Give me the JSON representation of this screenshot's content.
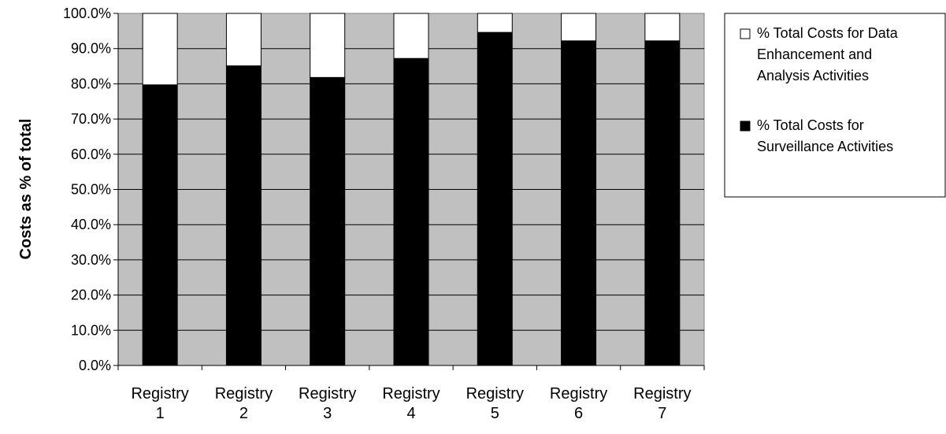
{
  "chart_data": {
    "type": "bar",
    "stacked": true,
    "percent_scale": true,
    "categories": [
      [
        "Registry",
        "1"
      ],
      [
        "Registry",
        "2"
      ],
      [
        "Registry",
        "3"
      ],
      [
        "Registry",
        "4"
      ],
      [
        "Registry",
        "5"
      ],
      [
        "Registry",
        "6"
      ],
      [
        "Registry",
        "7"
      ]
    ],
    "series": [
      {
        "name": "% Total Costs for Surveillance Activities",
        "legend_lines": [
          "% Total Costs for",
          "Surveillance Activities"
        ],
        "color": "#000000",
        "values": [
          79.7,
          85.1,
          81.8,
          87.2,
          94.6,
          92.2,
          92.2
        ]
      },
      {
        "name": "% Total Costs for Data Enhancement and Analysis Activities",
        "legend_lines": [
          "% Total Costs for Data",
          "Enhancement and",
          "Analysis Activities"
        ],
        "color": "#ffffff",
        "values": [
          20.3,
          14.9,
          18.2,
          12.8,
          5.4,
          7.8,
          7.8
        ]
      }
    ],
    "ylabel": "Costs as % of total",
    "xlabel": "",
    "title": "",
    "ylim": [
      0,
      100
    ],
    "yticks": [
      "0.0%",
      "10.0%",
      "20.0%",
      "30.0%",
      "40.0%",
      "50.0%",
      "60.0%",
      "70.0%",
      "80.0%",
      "90.0%",
      "100.0%"
    ],
    "grid": true,
    "plot_background": "#c0c0c0",
    "legend_position": "right"
  }
}
